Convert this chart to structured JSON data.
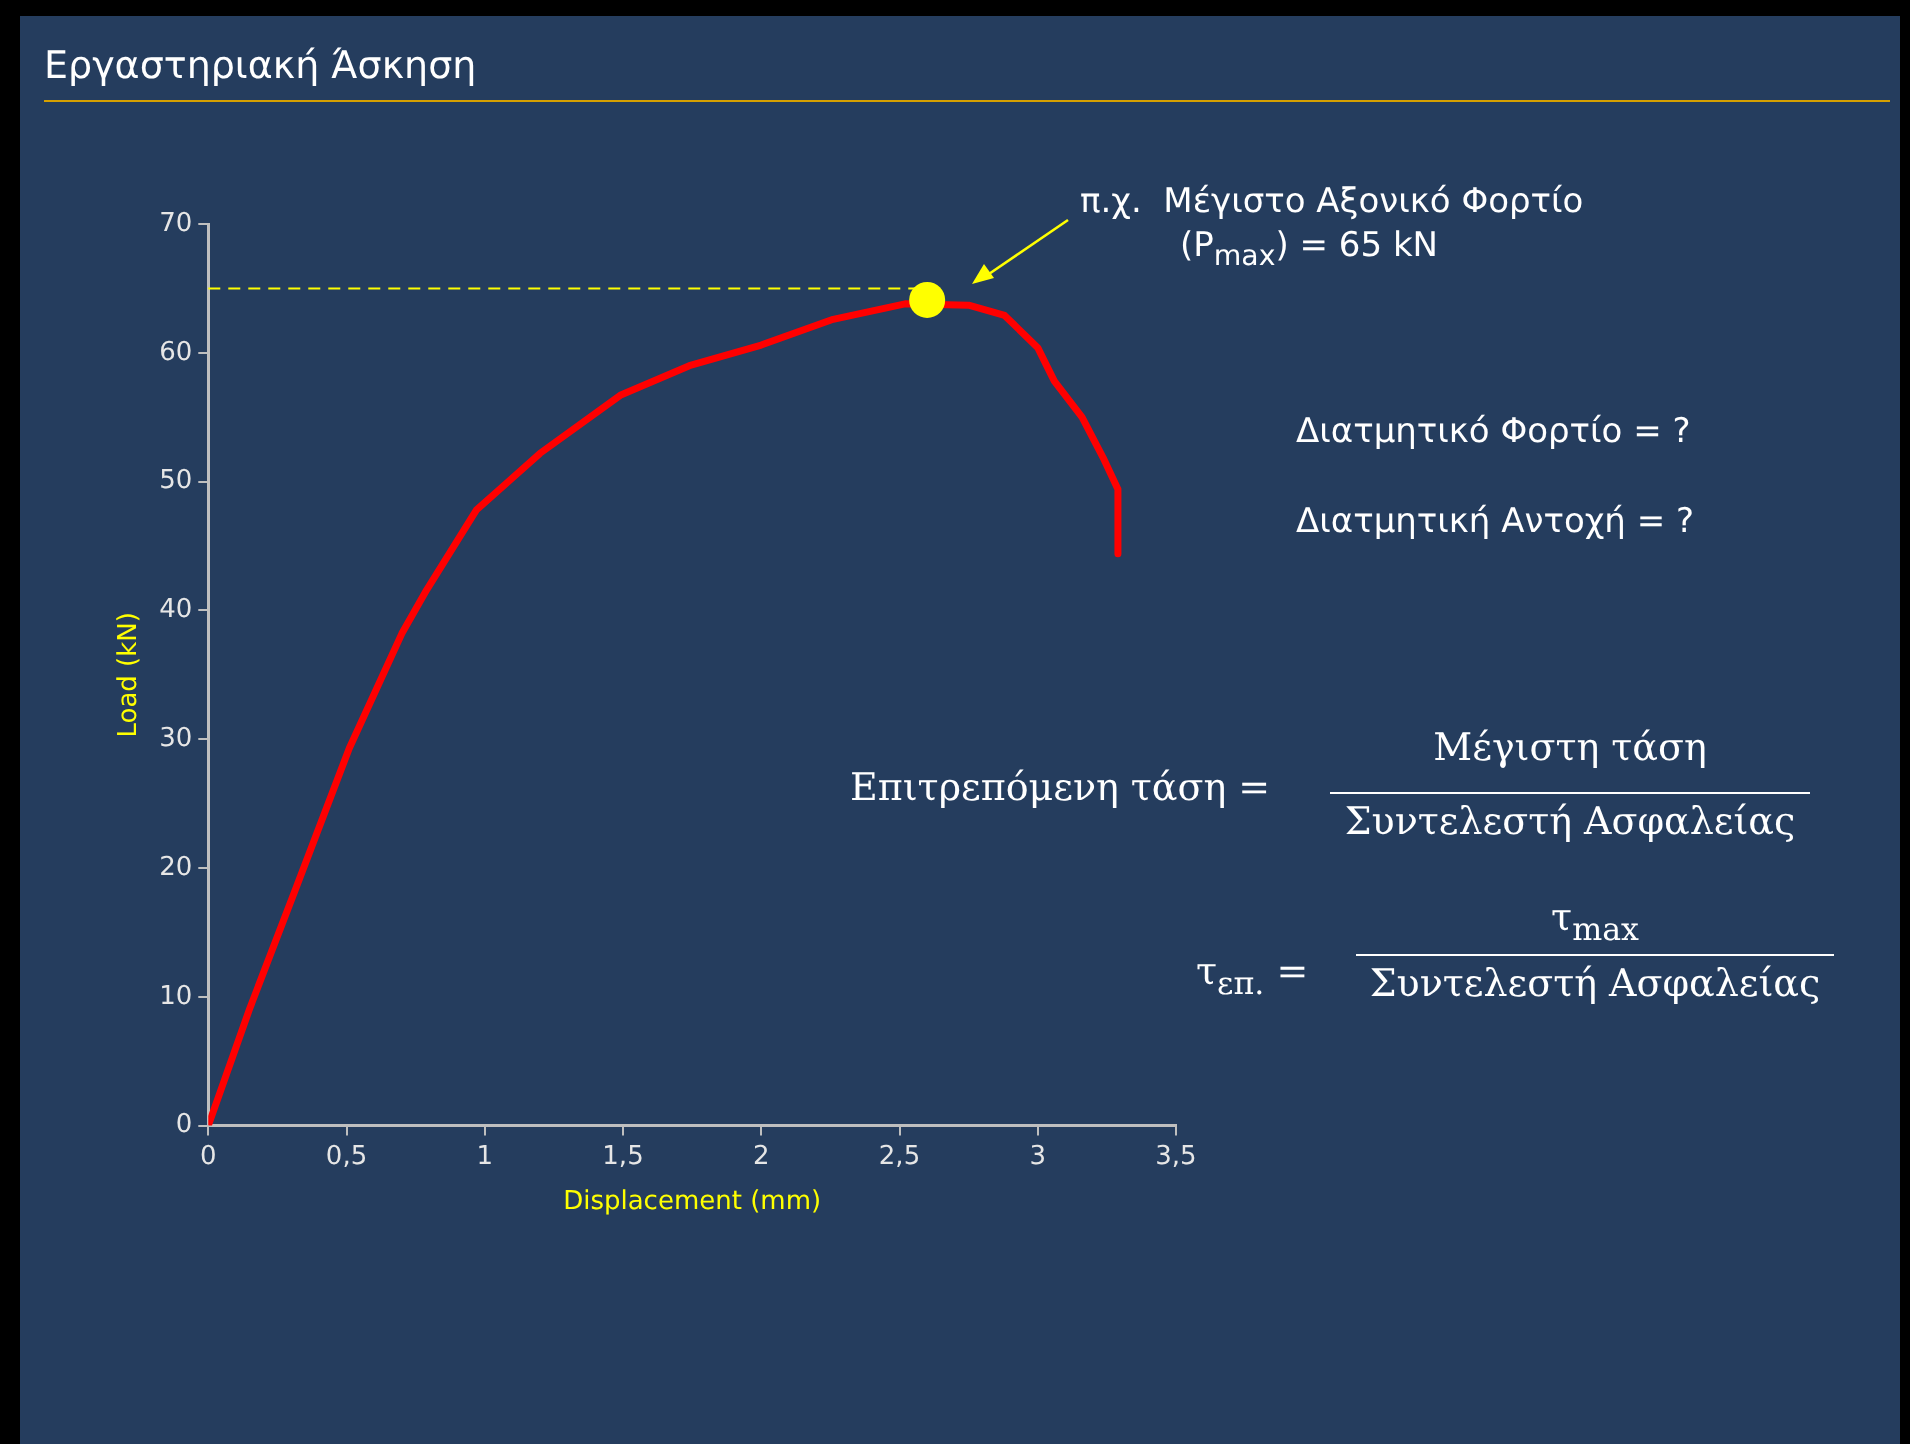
{
  "chart_data": {
    "type": "line",
    "title": "Εργαστηριακή Άσκηση",
    "xlabel": "Displacement (mm)",
    "ylabel": "Load (kN)",
    "xlim": [
      0,
      3.5
    ],
    "xticks": [
      0,
      {
        "value": 0.5,
        "label": "0,5"
      },
      1,
      {
        "value": 1.5,
        "label": "1,5"
      },
      2,
      {
        "value": 2.5,
        "label": "2,5"
      },
      3,
      {
        "value": 3.5,
        "label": "3,5"
      }
    ],
    "ylim": [
      0,
      70
    ],
    "yticks": [
      0,
      10,
      20,
      30,
      40,
      50,
      60,
      70
    ],
    "grid": false,
    "legend": false,
    "line_style": "solid",
    "series": [
      {
        "color": "#ff0000",
        "x": [
          0,
          0.15,
          0.32,
          0.51,
          0.7,
          0.79,
          0.97,
          1.2,
          1.49,
          1.74,
          2,
          2.26,
          2.52,
          2.75,
          2.88,
          3,
          3.06,
          3.16,
          3.24,
          3.29,
          3.29
        ],
        "values": [
          0,
          9.1,
          18.6,
          29.3,
          38.2,
          41.6,
          47.8,
          52.2,
          56.7,
          59,
          60.6,
          62.6,
          63.8,
          63.7,
          62.9,
          60.4,
          57.8,
          55,
          51.7,
          49.4,
          44.4
        ]
      },
      {
        "type": "scatter",
        "color": "#ffff00",
        "x": [
          2.6
        ],
        "values": [
          64.1
        ]
      }
    ],
    "ref_lines": [
      {
        "axis": "y",
        "value": 65,
        "color": "#ffff00",
        "line_style": "dashed"
      }
    ],
    "annotations": [
      "π.χ.  Μέγιστο Αξονικό Φορτίο\n(P$_{max}$) = 65 kN",
      "Διατμητικό Φορτίο = ?",
      "Διατμητική Αντοχή = ?",
      "Επιτρεπόμενη τάση =",
      "Μέγιστη τάση",
      "Συντελεστή Ασφαλείας",
      "τ$_{επ.}$ =",
      "τ$_{max}$",
      "Συντελεστή Ασφαλείας"
    ]
  }
}
